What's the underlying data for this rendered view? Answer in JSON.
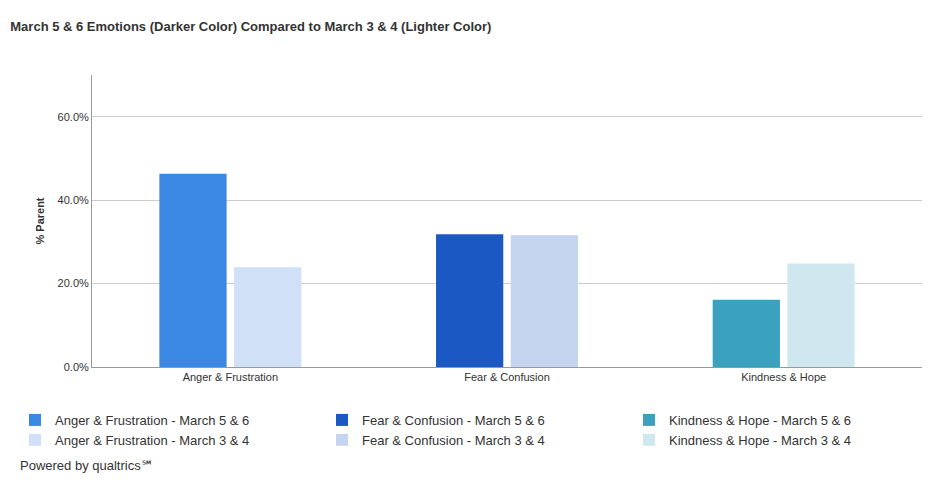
{
  "chart_data": {
    "type": "bar",
    "title": "March 5 & 6 Emotions (Darker Color) Compared to March 3 & 4 (Lighter Color)",
    "y_label": "% Parent",
    "categories": [
      "Anger & Frustration",
      "Fear & Confusion",
      "Kindness & Hope"
    ],
    "series": [
      {
        "name": "Anger & Frustration - March 5 & 6",
        "color": "#3b87e4",
        "values": [
          46.3,
          null,
          null
        ]
      },
      {
        "name": "Anger & Frustration - March 3 & 4",
        "color": "#cfe0f7",
        "values": [
          23.9,
          null,
          null
        ]
      },
      {
        "name": "Fear & Confusion - March 5 & 6",
        "color": "#1c58c4",
        "values": [
          null,
          31.8,
          null
        ]
      },
      {
        "name": "Fear & Confusion - March 3 & 4",
        "color": "#c5d5ef",
        "values": [
          null,
          31.6,
          null
        ]
      },
      {
        "name": "Kindness & Hope - March 5 & 6",
        "color": "#3aa2bf",
        "values": [
          null,
          null,
          16.1
        ]
      },
      {
        "name": "Kindness & Hope - March 3 & 4",
        "color": "#cfe8f0",
        "values": [
          null,
          null,
          24.8
        ]
      }
    ],
    "ylim": [
      0,
      70
    ],
    "yticks": [
      {
        "value": 0,
        "label": "0.0%"
      },
      {
        "value": 20,
        "label": "20.0%"
      },
      {
        "value": 40,
        "label": "40.0%"
      },
      {
        "value": 60,
        "label": "60.0%"
      }
    ],
    "grid": true,
    "legend": "bottom",
    "data_labels": false,
    "annotations": [
      "Powered by qualtrics℠"
    ]
  }
}
